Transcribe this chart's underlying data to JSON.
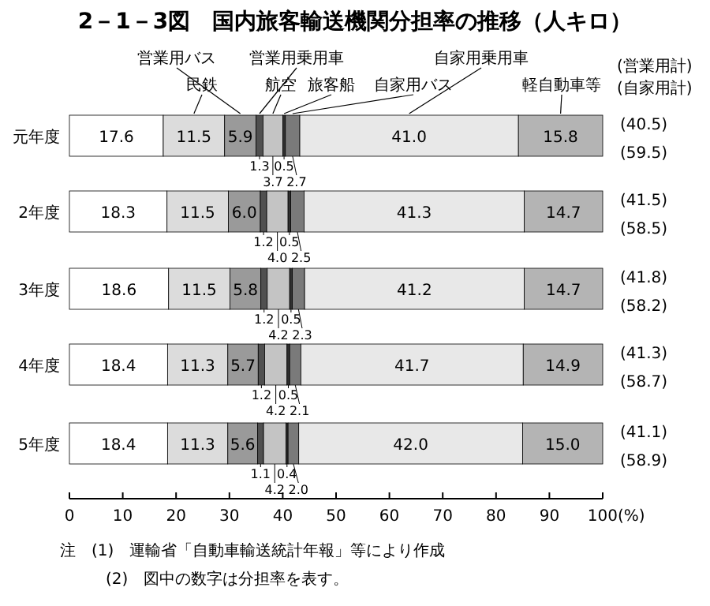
{
  "chart_data": {
    "type": "bar",
    "orientation": "horizontal",
    "stacked": true,
    "title": "2－1－3図　国内旅客輸送機関分担率の推移（人キロ）",
    "categories": [
      "元年度",
      "2年度",
      "3年度",
      "4年度",
      "5年度"
    ],
    "series": [
      {
        "color": "#ffffff",
        "values": [
          17.6,
          18.3,
          18.6,
          18.4,
          18.4
        ],
        "value_labels": [
          "17.6",
          "18.3",
          "18.6",
          "18.4",
          "18.4"
        ]
      },
      {
        "name": "民鉄",
        "color": "#dcdcdc",
        "values": [
          11.5,
          11.5,
          11.5,
          11.3,
          11.3
        ],
        "value_labels": [
          "11.5",
          "11.5",
          "11.5",
          "11.3",
          "11.3"
        ]
      },
      {
        "name": "営業用バス",
        "color": "#9a9a9a",
        "values": [
          5.9,
          6.0,
          5.8,
          5.7,
          5.6
        ],
        "value_labels": [
          "5.9",
          "6.0",
          "5.8",
          "5.7",
          "5.6"
        ]
      },
      {
        "name": "営業用乗用車",
        "color": "#505050",
        "values": [
          1.3,
          1.2,
          1.2,
          1.2,
          1.1
        ],
        "value_labels": [
          "1.3",
          "1.2",
          "1.2",
          "1.2",
          "1.1"
        ]
      },
      {
        "name": "航空",
        "color": "#c4c4c4",
        "values": [
          3.7,
          4.0,
          4.2,
          4.2,
          4.2
        ],
        "value_labels": [
          "3.7",
          "4.0",
          "4.2",
          "4.2",
          "4.2"
        ]
      },
      {
        "name": "旅客船",
        "color": "#303030",
        "values": [
          0.5,
          0.5,
          0.5,
          0.5,
          0.4
        ],
        "value_labels": [
          "0.5",
          "0.5",
          "0.5",
          "0.5",
          "0.4"
        ]
      },
      {
        "name": "自家用バス",
        "color": "#7a7a7a",
        "values": [
          2.7,
          2.5,
          2.3,
          2.1,
          2.0
        ],
        "value_labels": [
          "2.7",
          "2.5",
          "2.3",
          "2.1",
          "2.0"
        ]
      },
      {
        "name": "自家用乗用車",
        "color": "#e8e8e8",
        "values": [
          41.0,
          41.3,
          41.2,
          41.7,
          42.0
        ],
        "value_labels": [
          "41.0",
          "41.3",
          "41.2",
          "41.7",
          "42.0"
        ]
      },
      {
        "name": "軽自動車等",
        "color": "#b4b4b4",
        "values": [
          15.8,
          14.7,
          14.7,
          14.9,
          15.0
        ],
        "value_labels": [
          "15.8",
          "14.7",
          "14.7",
          "14.9",
          "15.0"
        ]
      }
    ],
    "xlim": [
      0,
      100
    ],
    "xticks": [
      0,
      10,
      20,
      30,
      40,
      50,
      60,
      70,
      80,
      90,
      {
        "value": 100,
        "label": "100(%)"
      }
    ],
    "annotations": [
      "(営業用計)",
      "(自家用計)",
      "(40.5)",
      "(59.5)",
      "(41.5)",
      "(58.5)",
      "(41.8)",
      "(58.2)",
      "(41.3)",
      "(58.7)",
      "(41.1)",
      "(58.9)",
      "注　(1)　運輸省「自動車輸送統計年報」等により作成",
      "(2)　図中の数字は分担率を表す。"
    ]
  }
}
